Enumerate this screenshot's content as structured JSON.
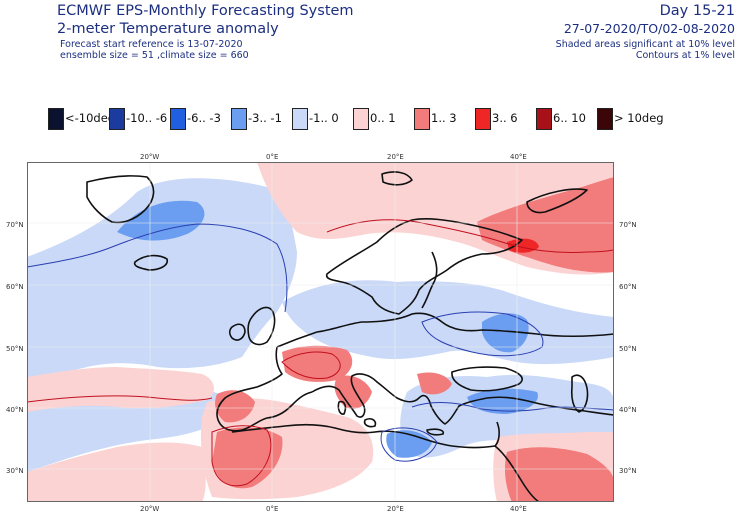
{
  "header": {
    "system": "ECMWF EPS-Monthly Forecasting System",
    "parameter": "2-meter Temperature anomaly",
    "forecast_ref": "Forecast start reference is 13-07-2020",
    "ensemble": "ensemble size = 51  ,climate size = 660",
    "day_range": "Day 15-21",
    "date_range": "27-07-2020/TO/02-08-2020",
    "significance_shaded": "Shaded areas significant at 10% level",
    "significance_contours": "Contours at 1% level"
  },
  "legend": [
    {
      "label": "<-10deg",
      "color": "#0a1230"
    },
    {
      "label": "-10.. -6",
      "color": "#1b3b9e"
    },
    {
      "label": "-6.. -3",
      "color": "#1f5fe0"
    },
    {
      "label": "-3.. -1",
      "color": "#6b9ef0"
    },
    {
      "label": "-1..  0",
      "color": "#c9d9f7"
    },
    {
      "label": "0..  1",
      "color": "#fbd3d3"
    },
    {
      "label": "1..  3",
      "color": "#f27b7b"
    },
    {
      "label": "3..  6",
      "color": "#ee2626"
    },
    {
      "label": "6.. 10",
      "color": "#a8101a"
    },
    {
      "label": "> 10deg",
      "color": "#3a0608"
    }
  ],
  "axes": {
    "lon_top": [
      "20°W",
      "0°E",
      "20°E",
      "40°E"
    ],
    "lon_bottom": [
      "20°W",
      "0°E",
      "20°E",
      "40°E"
    ],
    "lat_left": [
      "70°N",
      "60°N",
      "50°N",
      "40°N",
      "30°N"
    ],
    "lat_right": [
      "70°N",
      "60°N",
      "50°N",
      "40°N",
      "30°N"
    ]
  }
}
